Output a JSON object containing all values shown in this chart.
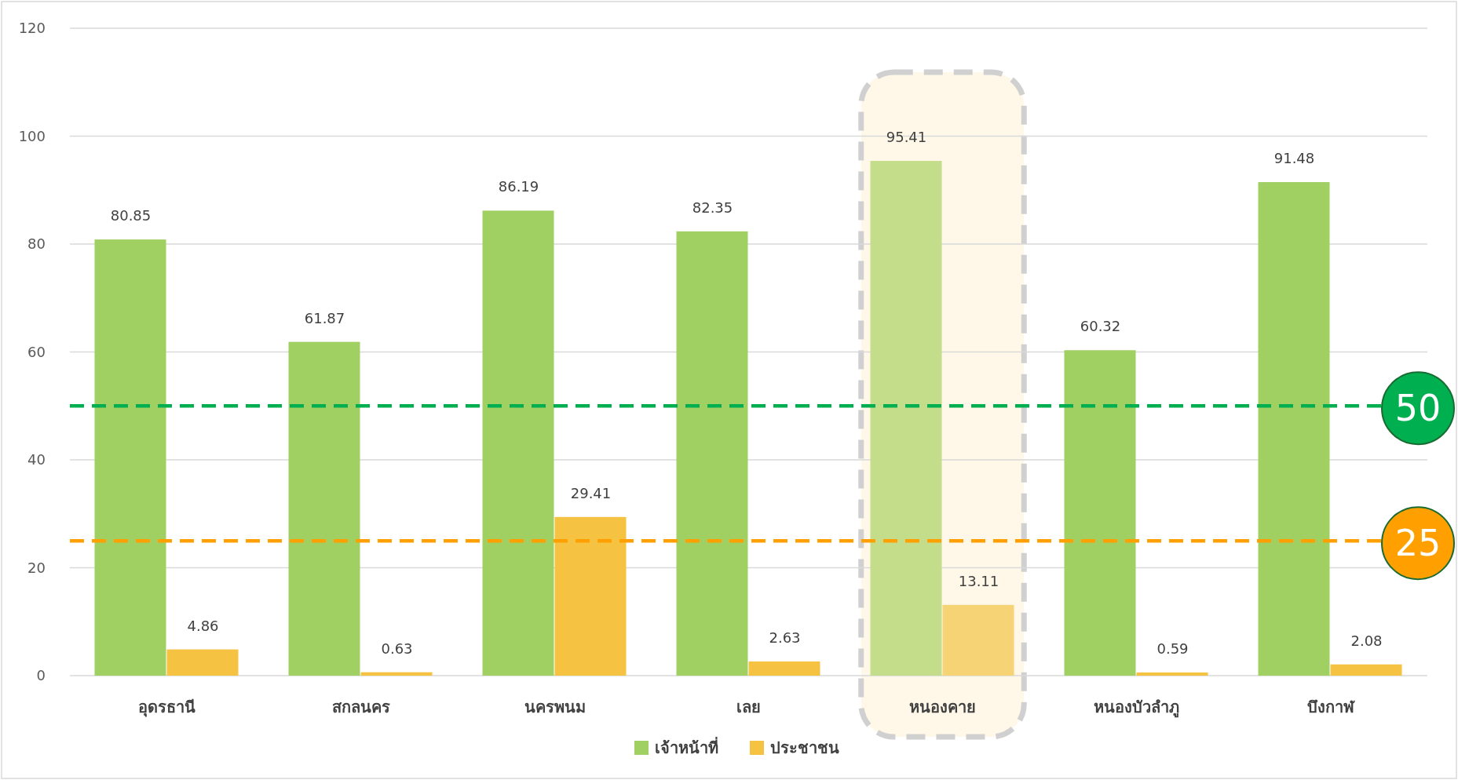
{
  "chart_data": {
    "type": "bar",
    "categories": [
      "อุดรธานี",
      "สกลนคร",
      "นครพนม",
      "เลย",
      "หนองคาย",
      "หนองบัวลำภู",
      "บึงกาฬ"
    ],
    "series": [
      {
        "name": "เจ้าหน้าที่",
        "color": "#a0cf62",
        "colors": [
          "#a0cf62",
          "#a0cf62",
          "#a0cf62",
          "#a0cf62",
          "#c4dd8a",
          "#a0cf62",
          "#a0cf62"
        ],
        "values": [
          80.85,
          61.87,
          86.19,
          82.35,
          95.41,
          60.32,
          91.48
        ]
      },
      {
        "name": "ประชาชน",
        "color": "#f5c242",
        "colors": [
          "#f5c242",
          "#f5c242",
          "#f5c242",
          "#f5c242",
          "#f6d475",
          "#f5c242",
          "#f5c242"
        ],
        "values": [
          4.86,
          0.63,
          29.41,
          2.63,
          13.11,
          0.59,
          2.08
        ]
      }
    ],
    "ylim": [
      0,
      120
    ],
    "yticks": [
      0,
      20,
      40,
      60,
      80,
      100,
      120
    ],
    "grid": "y",
    "legend": "bottom",
    "data_labels": true,
    "ref_lines": [
      {
        "axis": "y",
        "value": 50,
        "label": "50",
        "color": "#00b050",
        "line_style": "dashed"
      },
      {
        "axis": "y",
        "value": 25,
        "label": "25",
        "color": "#ffa000",
        "line_style": "dashed"
      }
    ],
    "bands": [
      {
        "axis": "x",
        "from": "หนองคาย",
        "to": "หนองคาย",
        "color": "#fff8e8"
      }
    ]
  }
}
